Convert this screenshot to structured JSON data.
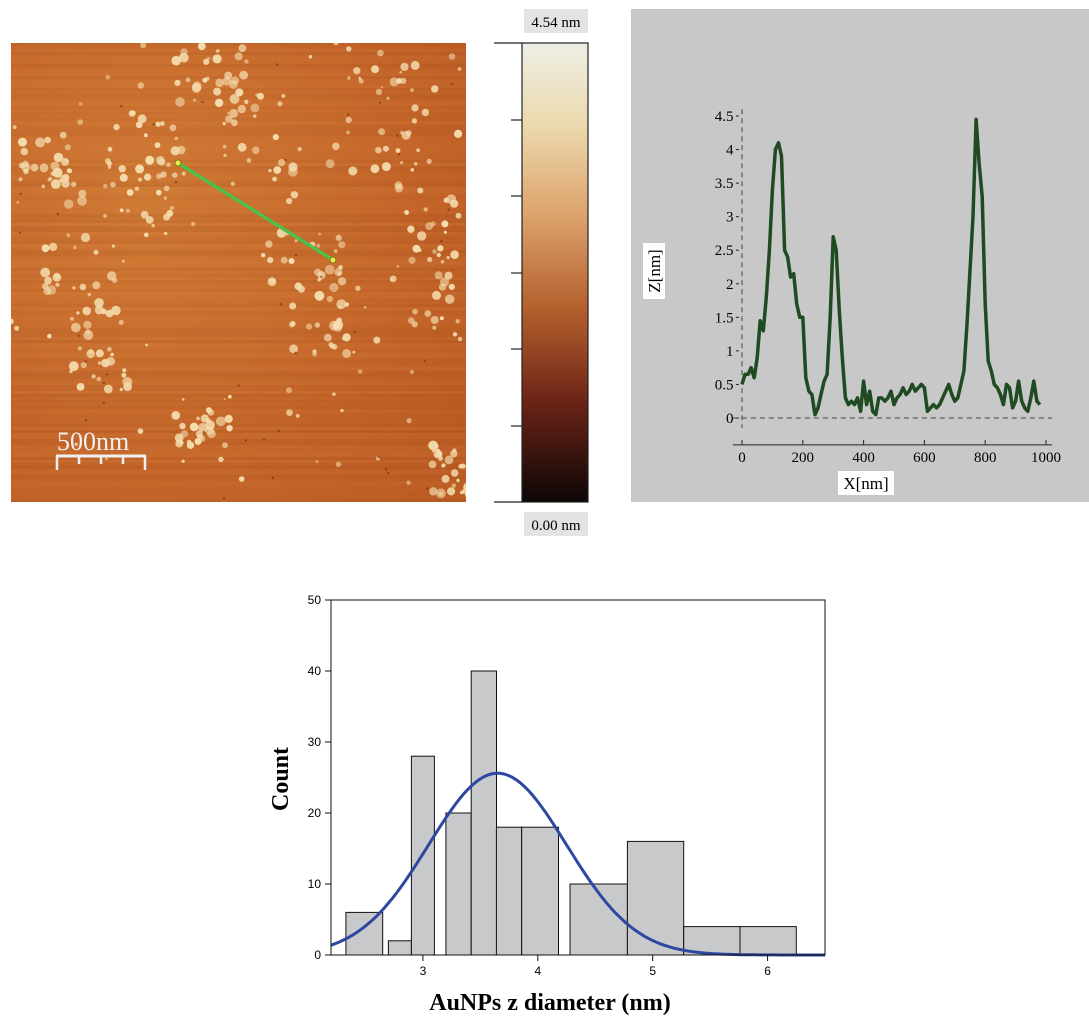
{
  "afm_image": {
    "scale_bar_label": "500nm",
    "colors": {
      "base": "#c96a2b",
      "particle": "#f5deb0",
      "profile_line": "#4fbf4a",
      "endpoint": "#e8e84a"
    }
  },
  "colorbar": {
    "max_label": "4.54 nm",
    "min_label": "0.00 nm",
    "range": [
      0,
      4.54
    ]
  },
  "chart_data": [
    {
      "type": "line",
      "xlabel": "X[nm]",
      "ylabel": "Z[nm]",
      "xlim": [
        -30,
        1020
      ],
      "ylim": [
        -0.1,
        4.6
      ],
      "xticks": [
        0,
        200,
        400,
        600,
        800,
        1000
      ],
      "yticks": [
        0,
        0.5,
        1,
        1.5,
        2,
        2.5,
        3,
        3.5,
        4,
        4.5
      ],
      "background": "#c8c8c8",
      "line_color": "#1f4a22",
      "series": [
        {
          "x": [
            0,
            10,
            20,
            30,
            40,
            50,
            60,
            70,
            80,
            90,
            100,
            110,
            120,
            130,
            140,
            150,
            160,
            170,
            180,
            190,
            200,
            210,
            220,
            230,
            240,
            250,
            260,
            270,
            280,
            290,
            300,
            310,
            320,
            330,
            340,
            350,
            360,
            370,
            380,
            390,
            400,
            410,
            420,
            430,
            440,
            450,
            460,
            470,
            480,
            490,
            500,
            510,
            520,
            530,
            540,
            550,
            560,
            570,
            580,
            590,
            600,
            610,
            620,
            630,
            640,
            650,
            660,
            670,
            680,
            690,
            700,
            710,
            720,
            730,
            740,
            750,
            760,
            770,
            780,
            790,
            800,
            810,
            820,
            830,
            840,
            850,
            860,
            870,
            880,
            890,
            900,
            910,
            920,
            930,
            940,
            950,
            960,
            970,
            980
          ],
          "y": [
            0.5,
            0.65,
            0.65,
            0.75,
            0.6,
            0.9,
            1.45,
            1.3,
            1.8,
            2.5,
            3.4,
            4.0,
            4.1,
            3.9,
            2.5,
            2.4,
            2.1,
            2.15,
            1.7,
            1.5,
            1.5,
            0.6,
            0.4,
            0.35,
            0.05,
            0.15,
            0.35,
            0.55,
            0.65,
            1.5,
            2.7,
            2.5,
            1.6,
            0.9,
            0.3,
            0.2,
            0.25,
            0.2,
            0.3,
            0.1,
            0.55,
            0.2,
            0.4,
            0.1,
            0.05,
            0.3,
            0.3,
            0.25,
            0.3,
            0.4,
            0.2,
            0.3,
            0.35,
            0.45,
            0.35,
            0.4,
            0.5,
            0.4,
            0.45,
            0.5,
            0.45,
            0.1,
            0.15,
            0.2,
            0.15,
            0.2,
            0.3,
            0.4,
            0.5,
            0.35,
            0.25,
            0.3,
            0.5,
            0.7,
            1.4,
            2.2,
            3.0,
            4.45,
            3.8,
            3.3,
            1.7,
            0.85,
            0.7,
            0.5,
            0.45,
            0.35,
            0.2,
            0.5,
            0.45,
            0.15,
            0.25,
            0.55,
            0.25,
            0.15,
            0.1,
            0.3,
            0.55,
            0.25,
            0.2
          ]
        }
      ]
    },
    {
      "type": "bar",
      "xlabel": "AuNPs z diameter (nm)",
      "ylabel": "Count",
      "xlim": [
        2.2,
        6.5
      ],
      "ylim": [
        0,
        50
      ],
      "xticks": [
        3,
        4,
        5,
        6
      ],
      "yticks": [
        0,
        10,
        20,
        30,
        40,
        50
      ],
      "bar_color": "#c8c9cb",
      "curve_color": "#2e47a0",
      "bins": [
        {
          "x0": 2.33,
          "x1": 2.65,
          "count": 6
        },
        {
          "x0": 2.7,
          "x1": 2.9,
          "count": 2
        },
        {
          "x0": 2.9,
          "x1": 3.1,
          "count": 28
        },
        {
          "x0": 3.2,
          "x1": 3.42,
          "count": 20
        },
        {
          "x0": 3.42,
          "x1": 3.64,
          "count": 40
        },
        {
          "x0": 3.64,
          "x1": 3.86,
          "count": 18
        },
        {
          "x0": 3.86,
          "x1": 4.18,
          "count": 18
        },
        {
          "x0": 4.28,
          "x1": 4.78,
          "count": 10
        },
        {
          "x0": 4.78,
          "x1": 5.27,
          "count": 16
        },
        {
          "x0": 5.27,
          "x1": 5.76,
          "count": 4
        },
        {
          "x0": 5.76,
          "x1": 6.25,
          "count": 4
        }
      ],
      "fit": {
        "mean": 3.65,
        "sd": 0.6,
        "peak": 25.6
      }
    }
  ]
}
